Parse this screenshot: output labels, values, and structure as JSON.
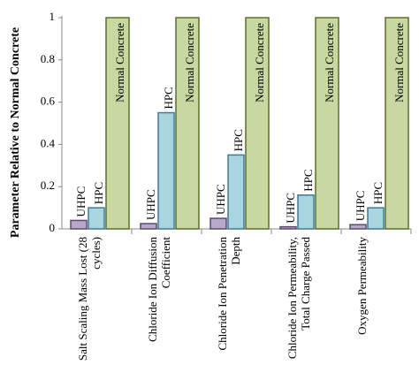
{
  "chart_data": {
    "type": "bar",
    "y_label": "Parameter Relative to Normal Concrete",
    "categories": [
      "Salt Scaling Mass Lost (28 cycles)",
      "Chloride Ion Diffusion Coefficient",
      "Chloride Ion Penetration Depth",
      "Chloride Ion Permeability, Total Charge Passed",
      "Oxygen Permeability"
    ],
    "series": [
      {
        "name": "UHPC",
        "color": "#b9a9c9",
        "values": [
          0.04,
          0.025,
          0.05,
          0.01,
          0.02
        ]
      },
      {
        "name": "HPC",
        "color": "#a9d4e0",
        "values": [
          0.1,
          0.55,
          0.35,
          0.16,
          0.1
        ]
      },
      {
        "name": "Normal Concrete",
        "color": "#c9d8a0",
        "values": [
          1,
          1,
          1,
          1,
          1
        ]
      }
    ],
    "ylim": [
      0,
      1
    ],
    "yticks": [
      0,
      0.2,
      0.4,
      0.6,
      0.8,
      1
    ]
  }
}
